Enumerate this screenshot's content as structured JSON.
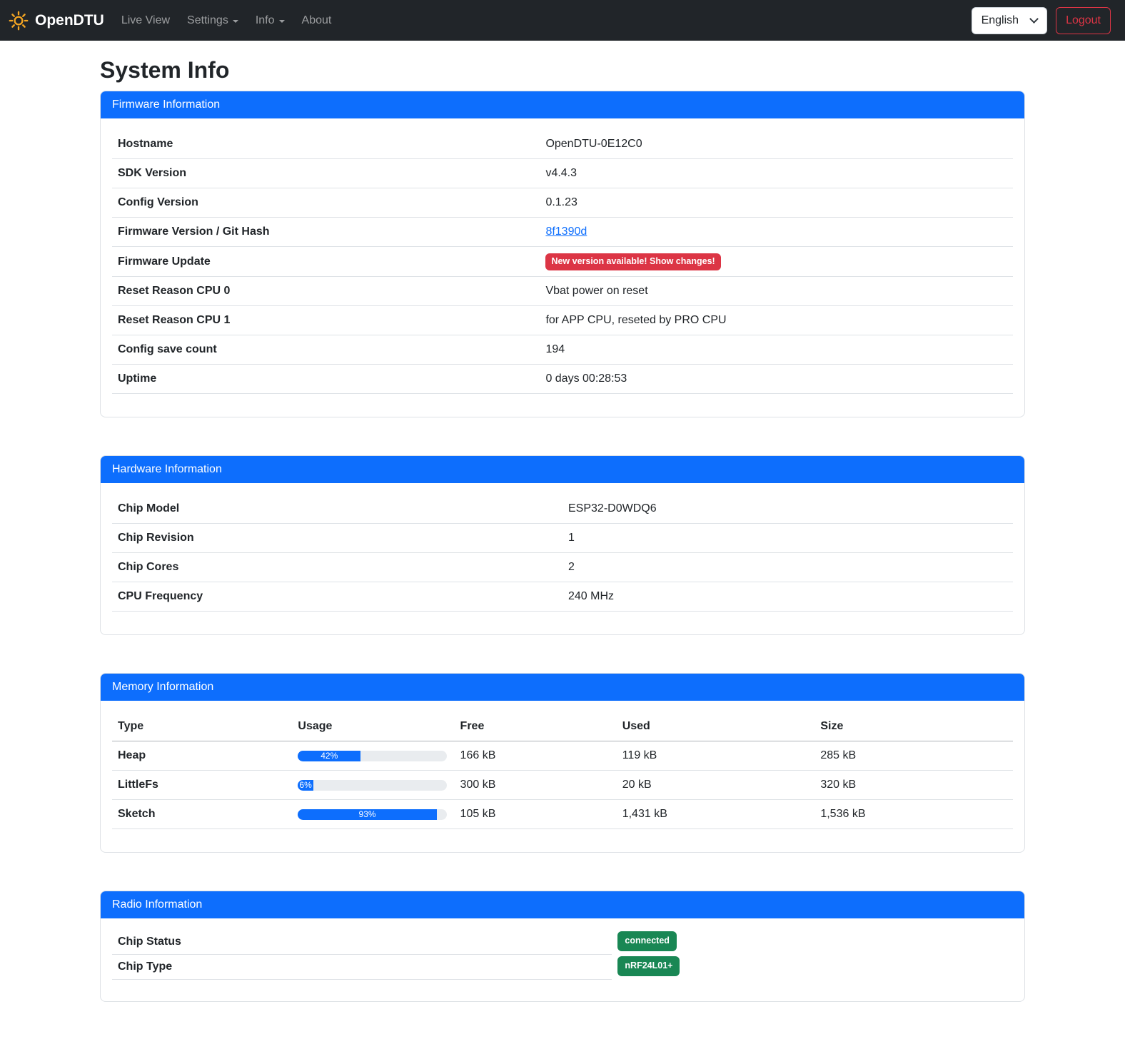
{
  "colors": {
    "primary": "#0d6efd",
    "danger": "#dc3545",
    "success": "#198754",
    "navbar-bg": "#212529",
    "link": "#0d6efd"
  },
  "navbar": {
    "brand": "OpenDTU",
    "brand_icon": "sun-icon",
    "items": [
      {
        "label": "Live View",
        "dropdown": false
      },
      {
        "label": "Settings",
        "dropdown": true
      },
      {
        "label": "Info",
        "dropdown": true
      },
      {
        "label": "About",
        "dropdown": false
      }
    ],
    "language_selected": "English",
    "logout_label": "Logout"
  },
  "page_title": "System Info",
  "firmware_card": {
    "title": "Firmware Information",
    "rows": [
      {
        "label": "Hostname",
        "value": "OpenDTU-0E12C0",
        "type": "text"
      },
      {
        "label": "SDK Version",
        "value": "v4.4.3",
        "type": "text"
      },
      {
        "label": "Config Version",
        "value": "0.1.23",
        "type": "text"
      },
      {
        "label": "Firmware Version / Git Hash",
        "value": "8f1390d",
        "type": "link"
      },
      {
        "label": "Firmware Update",
        "value": "New version available! Show changes!",
        "type": "badge-danger"
      },
      {
        "label": "Reset Reason CPU 0",
        "value": "Vbat power on reset",
        "type": "text"
      },
      {
        "label": "Reset Reason CPU 1",
        "value": "for APP CPU, reseted by PRO CPU",
        "type": "text"
      },
      {
        "label": "Config save count",
        "value": "194",
        "type": "text"
      },
      {
        "label": "Uptime",
        "value": "0 days 00:28:53",
        "type": "text"
      }
    ]
  },
  "hardware_card": {
    "title": "Hardware Information",
    "rows": [
      {
        "label": "Chip Model",
        "value": "ESP32-D0WDQ6",
        "type": "text"
      },
      {
        "label": "Chip Revision",
        "value": "1",
        "type": "text"
      },
      {
        "label": "Chip Cores",
        "value": "2",
        "type": "text"
      },
      {
        "label": "CPU Frequency",
        "value": "240 MHz",
        "type": "text"
      }
    ]
  },
  "memory_card": {
    "title": "Memory Information",
    "columns": [
      "Type",
      "Usage",
      "Free",
      "Used",
      "Size"
    ],
    "rows": [
      {
        "type": "Heap",
        "usage_percent": 42,
        "usage_label": "42%",
        "free": "166 kB",
        "used": "119 kB",
        "size": "285 kB"
      },
      {
        "type": "LittleFs",
        "usage_percent": 6,
        "usage_label": "6%",
        "free": "300 kB",
        "used": "20 kB",
        "size": "320 kB"
      },
      {
        "type": "Sketch",
        "usage_percent": 93,
        "usage_label": "93%",
        "free": "105 kB",
        "used": "1,431 kB",
        "size": "1,536 kB"
      }
    ]
  },
  "radio_card": {
    "title": "Radio Information",
    "rows": [
      {
        "label": "Chip Status",
        "badge": "connected"
      },
      {
        "label": "Chip Type",
        "badge": "nRF24L01+"
      }
    ]
  }
}
